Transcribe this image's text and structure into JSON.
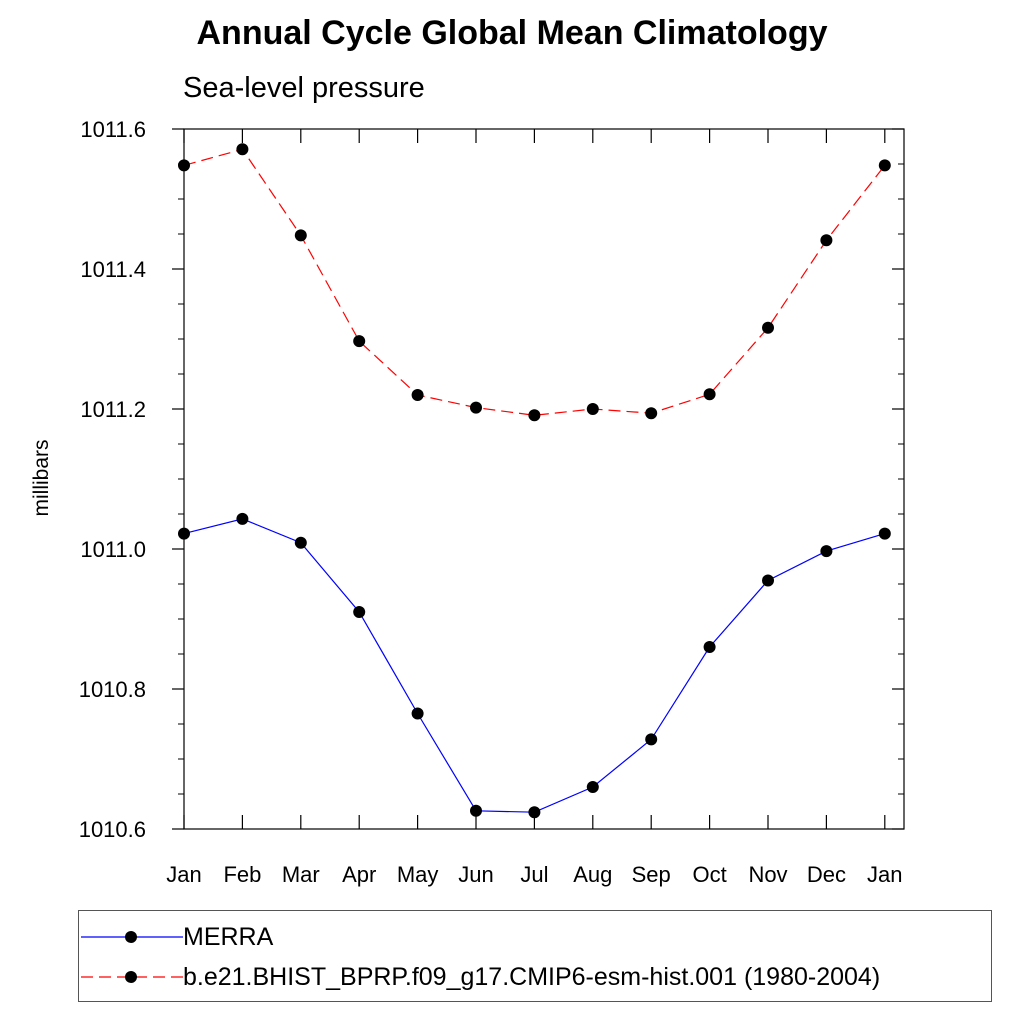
{
  "chart_data": {
    "type": "line",
    "title": "Annual Cycle Global Mean Climatology",
    "subtitle": "Sea-level pressure",
    "ylabel": "millibars",
    "xlabel": "",
    "categories": [
      "Jan",
      "Feb",
      "Mar",
      "Apr",
      "May",
      "Jun",
      "Jul",
      "Aug",
      "Sep",
      "Oct",
      "Nov",
      "Dec",
      "Jan"
    ],
    "ylim": [
      1010.6,
      1011.6
    ],
    "yticks": [
      "1010.6",
      "1010.8",
      "1011.0",
      "1011.2",
      "1011.4",
      "1011.6"
    ],
    "grid": false,
    "legend_placement": "bottom",
    "series": [
      {
        "name": "MERRA",
        "color": "#0000ff",
        "line_style": "solid",
        "marker_color": "#000000",
        "values": [
          1011.022,
          1011.043,
          1011.009,
          1010.91,
          1010.765,
          1010.626,
          1010.624,
          1010.66,
          1010.728,
          1010.86,
          1010.955,
          1010.997,
          1011.022
        ]
      },
      {
        "name": "b.e21.BHIST_BPRP.f09_g17.CMIP6-esm-hist.001 (1980-2004)",
        "color": "#ff0000",
        "line_style": "dashed",
        "marker_color": "#000000",
        "values": [
          1011.548,
          1011.571,
          1011.448,
          1011.297,
          1011.22,
          1011.202,
          1011.191,
          1011.2,
          1011.194,
          1011.221,
          1011.316,
          1011.441,
          1011.548
        ]
      }
    ]
  }
}
